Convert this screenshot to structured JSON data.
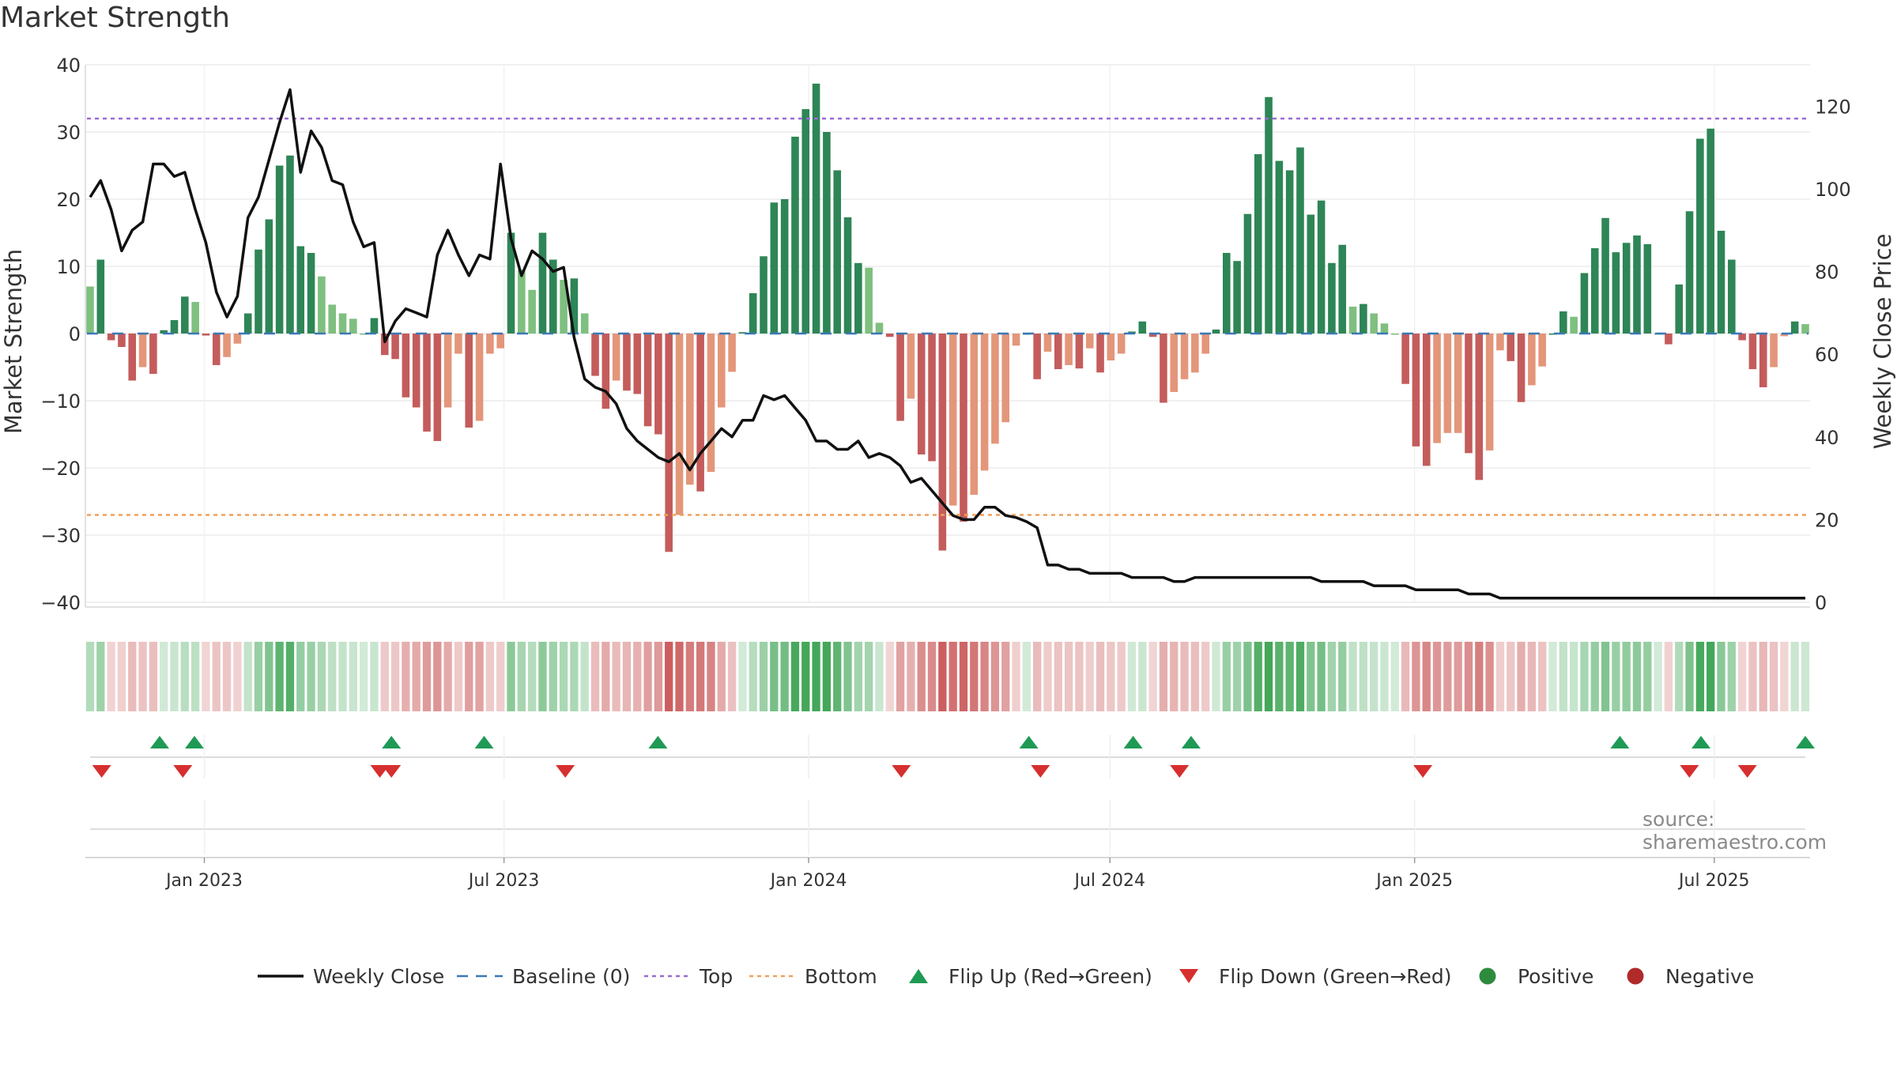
{
  "title": "Market Strength",
  "source": "source: sharemaestro.com",
  "chart_data": {
    "type": "bar",
    "title": "Market Strength",
    "ylabel": "Market Strength",
    "y2label": "Weekly Close Price",
    "ylim": [
      -40,
      40
    ],
    "y2lim": [
      0,
      130
    ],
    "yticks": [
      40,
      30,
      20,
      10,
      0,
      -10,
      -20,
      -30,
      -40
    ],
    "y2ticks": [
      120,
      100,
      80,
      60,
      40,
      20,
      0
    ],
    "top_line": 32,
    "bottom_line": -27,
    "grid": true,
    "x_start": "2022-10-24",
    "x_end": "2025-08-25",
    "xticks": [
      {
        "date": "2023-01-01",
        "label": "Jan 2023"
      },
      {
        "date": "2023-07-01",
        "label": "Jul 2023"
      },
      {
        "date": "2024-01-01",
        "label": "Jan 2024"
      },
      {
        "date": "2024-07-01",
        "label": "Jul 2024"
      },
      {
        "date": "2025-01-01",
        "label": "Jan 2025"
      },
      {
        "date": "2025-07-01",
        "label": "Jul 2025"
      }
    ],
    "strength": [
      7,
      11,
      -1,
      -2,
      -7,
      -5,
      -6,
      0.5,
      2,
      5.5,
      4.7,
      -0.3,
      -4.7,
      -3.5,
      -1.5,
      3,
      12.5,
      17,
      25,
      26.5,
      13,
      12,
      8.5,
      4.3,
      3,
      2.2,
      0,
      2.3,
      -3.2,
      -3.8,
      -9.5,
      -11,
      -14.6,
      -16,
      -11,
      -3,
      -14,
      -13,
      -3,
      -2.2,
      15,
      9.5,
      6.5,
      15,
      11,
      8,
      8.2,
      3,
      -6.3,
      -11.2,
      -7,
      -8.5,
      -9,
      -13.8,
      -15,
      -32.5,
      -27,
      -22.5,
      -23.5,
      -20.6,
      -11,
      -5.7,
      0.2,
      6,
      11.5,
      19.5,
      20,
      29.3,
      33.4,
      37.2,
      30,
      24.3,
      17.3,
      10.5,
      9.8,
      1.6,
      -0.5,
      -13,
      -9.7,
      -18,
      -19,
      -32.3,
      -25.6,
      -28,
      -24,
      -20.4,
      -16.4,
      -13.2,
      -1.8,
      0,
      -6.8,
      -2.7,
      -5.3,
      -4.7,
      -5.2,
      -2.2,
      -5.8,
      -4,
      -3,
      0.3,
      1.8,
      -0.5,
      -10.3,
      -8.7,
      -6.8,
      -5.8,
      -3,
      0.6,
      12,
      10.8,
      17.8,
      26.7,
      35.2,
      25.7,
      24.3,
      27.7,
      17.7,
      19.8,
      10.5,
      13.2,
      4,
      4.4,
      3,
      1.5,
      0,
      -7.5,
      -16.8,
      -19.7,
      -16.3,
      -14.8,
      -14.8,
      -17.8,
      -21.8,
      -17.4,
      -2.5,
      -4.1,
      -10.2,
      -7.7,
      -4.9,
      0,
      3.3,
      2.5,
      9,
      12.7,
      17.2,
      12.1,
      13.5,
      14.6,
      13.3,
      0,
      -1.6,
      7.3,
      18.2,
      29,
      30.5,
      15.3,
      11,
      -1,
      -5.3,
      -8,
      -5,
      -0.4,
      1.8,
      1.4
    ],
    "series": [
      {
        "name": "Weekly Close",
        "values": [
          98,
          102,
          95,
          85,
          90,
          92,
          106,
          106,
          103,
          104,
          95,
          87,
          75,
          69,
          74,
          93,
          98,
          107,
          116,
          124,
          104,
          114,
          110,
          102,
          101,
          92,
          86,
          87,
          63,
          68,
          71,
          70,
          69,
          84,
          90,
          84,
          79,
          84,
          83,
          106,
          88,
          79,
          85,
          83,
          80,
          81,
          64,
          54,
          52,
          51,
          48,
          42,
          39,
          37,
          35,
          34,
          36,
          32,
          36,
          39,
          42,
          40,
          44,
          44,
          50,
          49,
          50,
          47,
          44,
          39,
          39,
          37,
          37,
          39,
          35,
          36,
          35,
          33,
          29,
          30,
          27,
          24,
          21,
          20,
          20,
          23,
          23,
          21,
          20.5,
          19.5,
          18,
          9,
          9,
          8,
          8,
          7,
          7,
          7,
          7,
          6,
          6,
          6,
          6,
          5,
          5,
          6,
          6,
          6,
          6,
          6,
          6,
          6,
          6,
          6,
          6,
          6,
          6,
          5,
          5,
          5,
          5,
          5,
          4,
          4,
          4,
          4,
          3,
          3,
          3,
          3,
          3,
          2,
          2,
          2,
          1,
          1,
          1,
          1,
          1,
          1,
          1,
          1,
          1,
          1,
          1,
          1,
          1,
          1,
          1,
          1,
          1,
          1,
          1,
          1,
          1,
          1,
          1,
          1,
          1,
          1,
          1,
          1,
          1,
          1
        ]
      },
      {
        "name": "Baseline (0)"
      },
      {
        "name": "Top"
      },
      {
        "name": "Bottom"
      }
    ],
    "flip_up": [
      "2022-12-05",
      "2022-12-26",
      "2023-04-24",
      "2023-06-19",
      "2023-10-02",
      "2024-05-13",
      "2024-07-15",
      "2024-08-19",
      "2025-05-05",
      "2025-06-23",
      "2025-08-25"
    ],
    "flip_down": [
      "2022-10-31",
      "2022-12-19",
      "2023-04-17",
      "2023-04-24",
      "2023-08-07",
      "2024-02-26",
      "2024-05-20",
      "2024-08-12",
      "2025-01-06",
      "2025-06-16",
      "2025-07-21"
    ],
    "legend": [
      "Weekly Close",
      "Baseline (0)",
      "Top",
      "Bottom",
      "Flip Up (Red→Green)",
      "Flip Down (Green→Red)",
      "Positive",
      "Negative"
    ],
    "legend_position": "bottom",
    "colors": {
      "strong_green": "#2e8556",
      "light_green": "#7fbf7f",
      "strong_red": "#c45c5c",
      "light_red": "#e3967a",
      "price_line": "#111111",
      "baseline": "#3a78b5",
      "top": "#9b6ad6",
      "bottom": "#f0a05a",
      "flip_up": "#1f9a55",
      "flip_down": "#d62f2f",
      "positive": "#2e8b3e",
      "negative": "#b02a2a",
      "source": "#8a8a8a"
    }
  }
}
